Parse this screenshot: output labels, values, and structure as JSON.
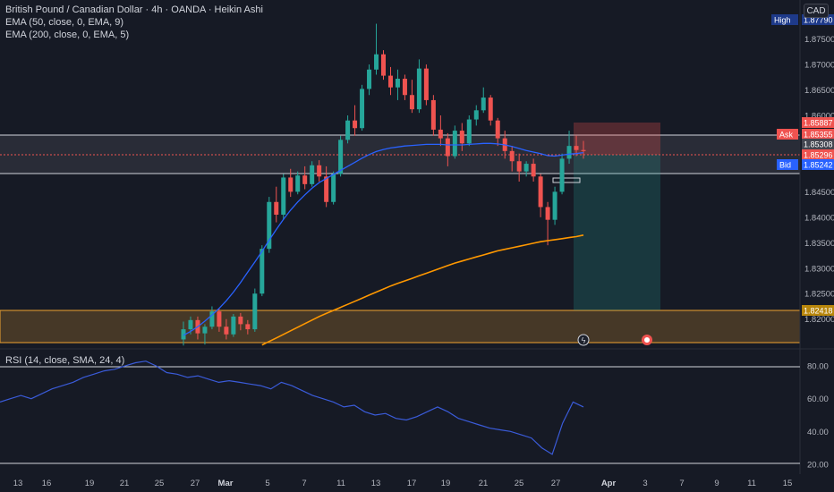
{
  "header": {
    "title": "British Pound / Canadian Dollar · 4h · OANDA · Heikin Ashi",
    "ema1": "EMA (50, close, 0, EMA, 9)",
    "ema2": "EMA (200, close, 0, EMA, 5)",
    "currency": "CAD"
  },
  "colors": {
    "background": "#161a25",
    "up": "#26a69a",
    "down": "#ef5350",
    "ema50": "#2962ff",
    "ema200": "#ff9800",
    "rsi": "#3a5bd9",
    "zone": "#f0a33033"
  },
  "chart_data": {
    "type": "candlestick",
    "title": "British Pound / Canadian Dollar · 4h · OANDA · Heikin Ashi",
    "y_axis_ticks": [
      "1.87500",
      "1.87000",
      "1.86500",
      "1.86000",
      "1.85500",
      "1.85000",
      "1.84500",
      "1.84000",
      "1.83500",
      "1.83000",
      "1.82500",
      "1.82000"
    ],
    "x_axis_labels": [
      "13",
      "16",
      "19",
      "21",
      "25",
      "27",
      "Mar",
      "5",
      "7",
      "11",
      "13",
      "17",
      "19",
      "21",
      "25",
      "27",
      "Apr",
      "3",
      "7",
      "9",
      "11",
      "15"
    ],
    "price_labels": [
      {
        "name": "High",
        "value": "1.87790",
        "color": "#1e3a8a"
      },
      {
        "name": "",
        "value": "1.85887",
        "color": "#ef5350"
      },
      {
        "name": "Ask",
        "value": "1.85355",
        "color": "#ef5350"
      },
      {
        "name": "",
        "value": "1.85308",
        "color": "#434651"
      },
      {
        "name": "",
        "value": "1.85296",
        "color": "#ef5350"
      },
      {
        "name": "Bid",
        "value": "1.85242",
        "color": "#2962ff"
      },
      {
        "name": "",
        "value": "1.82418",
        "color": "#b8860b"
      }
    ],
    "ylim": [
      1.8145,
      1.8795
    ],
    "candles": [
      [
        1.816,
        1.8195,
        1.8148,
        1.818
      ],
      [
        1.818,
        1.8205,
        1.817,
        1.8198
      ],
      [
        1.8198,
        1.8205,
        1.816,
        1.8172
      ],
      [
        1.8172,
        1.819,
        1.815,
        1.8185
      ],
      [
        1.8185,
        1.8225,
        1.818,
        1.8215
      ],
      [
        1.8215,
        1.822,
        1.8175,
        1.8185
      ],
      [
        1.8185,
        1.82,
        1.816,
        1.817
      ],
      [
        1.817,
        1.821,
        1.8165,
        1.8205
      ],
      [
        1.8205,
        1.8212,
        1.8178,
        1.819
      ],
      [
        1.819,
        1.8198,
        1.817,
        1.818
      ],
      [
        1.818,
        1.826,
        1.8175,
        1.825
      ],
      [
        1.825,
        1.8345,
        1.8245,
        1.8338
      ],
      [
        1.8338,
        1.844,
        1.833,
        1.843
      ],
      [
        1.843,
        1.846,
        1.839,
        1.8405
      ],
      [
        1.8405,
        1.8485,
        1.8395,
        1.8478
      ],
      [
        1.8478,
        1.8495,
        1.844,
        1.845
      ],
      [
        1.845,
        1.849,
        1.8445,
        1.8482
      ],
      [
        1.8482,
        1.85,
        1.8455,
        1.8465
      ],
      [
        1.8465,
        1.851,
        1.846,
        1.8502
      ],
      [
        1.8502,
        1.8512,
        1.847,
        1.848
      ],
      [
        1.848,
        1.85,
        1.842,
        1.843
      ],
      [
        1.843,
        1.849,
        1.8425,
        1.8485
      ],
      [
        1.8485,
        1.856,
        1.848,
        1.8552
      ],
      [
        1.8552,
        1.86,
        1.8545,
        1.859
      ],
      [
        1.859,
        1.862,
        1.856,
        1.8575
      ],
      [
        1.8575,
        1.866,
        1.857,
        1.8652
      ],
      [
        1.8652,
        1.87,
        1.864,
        1.869
      ],
      [
        1.869,
        1.878,
        1.868,
        1.872
      ],
      [
        1.872,
        1.8728,
        1.867,
        1.8678
      ],
      [
        1.8678,
        1.8695,
        1.864,
        1.8655
      ],
      [
        1.8655,
        1.869,
        1.863,
        1.8672
      ],
      [
        1.8672,
        1.868,
        1.863,
        1.864
      ],
      [
        1.864,
        1.867,
        1.8605,
        1.8612
      ],
      [
        1.8612,
        1.871,
        1.8605,
        1.8692
      ],
      [
        1.8692,
        1.87,
        1.862,
        1.863
      ],
      [
        1.863,
        1.864,
        1.856,
        1.8572
      ],
      [
        1.8572,
        1.86,
        1.854,
        1.8555
      ],
      [
        1.8555,
        1.8565,
        1.85,
        1.852
      ],
      [
        1.852,
        1.858,
        1.8515,
        1.857
      ],
      [
        1.857,
        1.8585,
        1.853,
        1.8545
      ],
      [
        1.8545,
        1.86,
        1.854,
        1.8592
      ],
      [
        1.8592,
        1.862,
        1.858,
        1.861
      ],
      [
        1.861,
        1.8655,
        1.8605,
        1.8635
      ],
      [
        1.8635,
        1.864,
        1.858,
        1.859
      ],
      [
        1.859,
        1.8595,
        1.854,
        1.8555
      ],
      [
        1.8555,
        1.857,
        1.8515,
        1.853
      ],
      [
        1.853,
        1.854,
        1.849,
        1.851
      ],
      [
        1.851,
        1.8525,
        1.847,
        1.849
      ],
      [
        1.849,
        1.851,
        1.848,
        1.8505
      ],
      [
        1.8505,
        1.8515,
        1.847,
        1.848
      ],
      [
        1.848,
        1.8485,
        1.84,
        1.842
      ],
      [
        1.842,
        1.843,
        1.8345,
        1.8395
      ],
      [
        1.8395,
        1.846,
        1.8385,
        1.845
      ],
      [
        1.845,
        1.8525,
        1.8445,
        1.8515
      ],
      [
        1.8515,
        1.857,
        1.8505,
        1.854
      ],
      [
        1.854,
        1.856,
        1.852,
        1.8532
      ],
      [
        1.8532,
        1.855,
        1.8515,
        1.853
      ]
    ],
    "ema50": [
      1.8168,
      1.8176,
      1.8185,
      1.8196,
      1.8208,
      1.8221,
      1.8236,
      1.8253,
      1.8272,
      1.8292,
      1.8312,
      1.8333,
      1.8355,
      1.8376,
      1.8396,
      1.8414,
      1.843,
      1.8444,
      1.8457,
      1.8468,
      1.8476,
      1.8484,
      1.8492,
      1.85,
      1.8508,
      1.8516,
      1.8523,
      1.8529,
      1.8533,
      1.8536,
      1.8538,
      1.854,
      1.8541,
      1.8542,
      1.8543,
      1.8543,
      1.8543,
      1.8542,
      1.8542,
      1.8542,
      1.8543,
      1.8544,
      1.8545,
      1.8545,
      1.8544,
      1.8542,
      1.8539,
      1.8535,
      1.8531,
      1.8528,
      1.8525,
      1.8521,
      1.852,
      1.8522,
      1.8524,
      1.8525,
      1.8527
    ],
    "ema200": [
      1.8085,
      1.809,
      1.8095,
      1.81,
      1.8105,
      1.811,
      1.8116,
      1.8122,
      1.8128,
      1.8135,
      1.8142,
      1.8149,
      1.8156,
      1.8163,
      1.817,
      1.8177,
      1.8184,
      1.8191,
      1.8198,
      1.8205,
      1.8211,
      1.8217,
      1.8223,
      1.8229,
      1.8235,
      1.8241,
      1.8247,
      1.8253,
      1.8259,
      1.8265,
      1.827,
      1.8275,
      1.828,
      1.8285,
      1.829,
      1.8295,
      1.83,
      1.8305,
      1.831,
      1.8314,
      1.8318,
      1.8322,
      1.8326,
      1.833,
      1.8334,
      1.8337,
      1.834,
      1.8343,
      1.8346,
      1.8349,
      1.8352,
      1.8354,
      1.8356,
      1.8358,
      1.836,
      1.8362,
      1.8365
    ],
    "rsi": {
      "label": "RSI (14, close, SMA, 24, 4)",
      "levels": [
        80,
        60,
        40,
        20
      ],
      "ylim": [
        15,
        85
      ],
      "values": [
        58,
        60,
        62,
        60,
        63,
        66,
        68,
        70,
        73,
        75,
        77,
        78,
        80,
        82,
        83,
        80,
        76,
        75,
        73,
        74,
        72,
        70,
        71,
        70,
        69,
        68,
        66,
        70,
        68,
        65,
        62,
        60,
        58,
        55,
        56,
        52,
        50,
        51,
        48,
        47,
        49,
        52,
        55,
        52,
        48,
        46,
        44,
        42,
        41,
        40,
        38,
        36,
        30,
        26,
        45,
        58,
        55
      ]
    }
  }
}
